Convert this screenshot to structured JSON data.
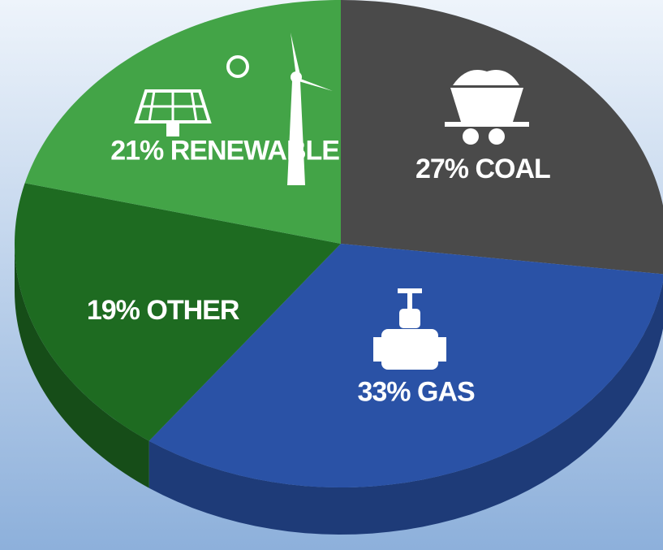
{
  "chart_data": {
    "type": "pie",
    "categories": [
      "COAL",
      "GAS",
      "OTHER",
      "RENEWABLE"
    ],
    "values": [
      27,
      33,
      19,
      21
    ],
    "value_labels": [
      "27%",
      "33%",
      "19%",
      "21%"
    ],
    "colors": [
      "#4a4a4a",
      "#2a52a6",
      "#1e6b21",
      "#43a447"
    ]
  }
}
